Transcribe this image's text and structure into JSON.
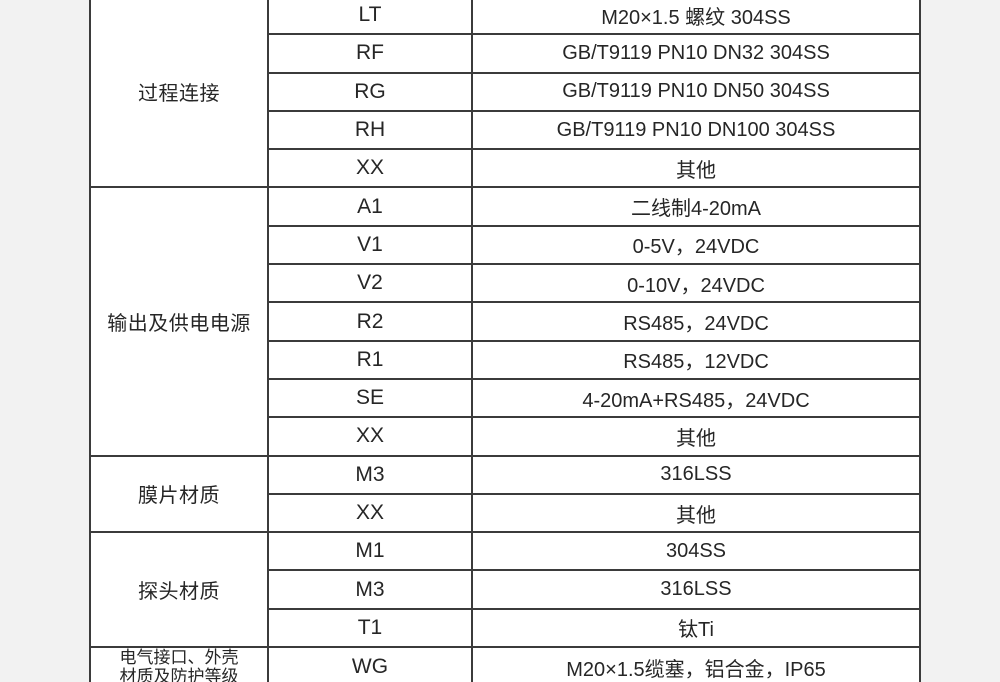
{
  "page": {
    "background_color": "#f2f2f2",
    "cell_background_color": "#ffffff",
    "border_color": "#3b3b3b",
    "text_color": "#262626"
  },
  "table": {
    "columns": [
      "category",
      "code",
      "description"
    ],
    "sections": [
      {
        "category": "过程连接",
        "rows": [
          {
            "code": "LT",
            "description": "M20×1.5 螺纹 304SS"
          },
          {
            "code": "RF",
            "description": "GB/T9119 PN10 DN32 304SS"
          },
          {
            "code": "RG",
            "description": "GB/T9119 PN10 DN50 304SS"
          },
          {
            "code": "RH",
            "description": "GB/T9119 PN10 DN100 304SS"
          },
          {
            "code": "XX",
            "description": "其他"
          }
        ]
      },
      {
        "category": "输出及供电电源",
        "rows": [
          {
            "code": "A1",
            "description": "二线制4-20mA"
          },
          {
            "code": "V1",
            "description": "0-5V，24VDC"
          },
          {
            "code": "V2",
            "description": "0-10V，24VDC"
          },
          {
            "code": "R2",
            "description": "RS485，24VDC"
          },
          {
            "code": "R1",
            "description": "RS485，12VDC"
          },
          {
            "code": "SE",
            "description": "4-20mA+RS485，24VDC"
          },
          {
            "code": "XX",
            "description": "其他"
          }
        ]
      },
      {
        "category": "膜片材质",
        "rows": [
          {
            "code": "M3",
            "description": "316LSS"
          },
          {
            "code": "XX",
            "description": "其他"
          }
        ]
      },
      {
        "category": "探头材质",
        "rows": [
          {
            "code": "M1",
            "description": "304SS"
          },
          {
            "code": "M3",
            "description": "316LSS"
          },
          {
            "code": "T1",
            "description": "钛Ti"
          }
        ]
      },
      {
        "category": "电气接口、外壳\n材质及防护等级",
        "rows": [
          {
            "code": "WG",
            "description": "M20×1.5缆塞，铝合金，IP65"
          }
        ]
      }
    ]
  }
}
